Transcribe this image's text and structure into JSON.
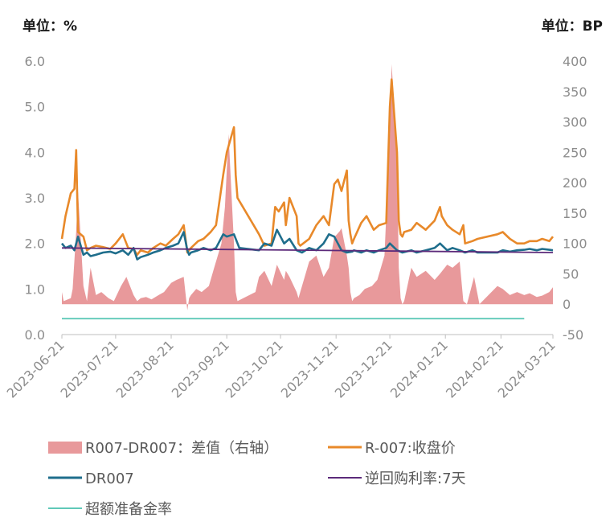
{
  "chart_data": {
    "type": "line",
    "left_axis_unit": "单位：%",
    "right_axis_unit": "单位：BP",
    "y_left": {
      "min": 0,
      "max": 6,
      "ticks": [
        0,
        1,
        2,
        3,
        4,
        5,
        6
      ],
      "tick_labels": [
        "0.0",
        "1.0",
        "2.0",
        "3.0",
        "4.0",
        "5.0",
        "6.0"
      ]
    },
    "y_right": {
      "min": -50,
      "max": 400,
      "ticks": [
        -50,
        0,
        50,
        100,
        150,
        200,
        250,
        300,
        350,
        400
      ],
      "tick_labels": [
        "-50",
        "0",
        "50",
        "100",
        "150",
        "200",
        "250",
        "300",
        "350",
        "400"
      ]
    },
    "x_range": [
      "2023-06-21",
      "2024-03-21"
    ],
    "x_ticks": [
      "2023-06-21",
      "2023-07-21",
      "2023-08-21",
      "2023-09-21",
      "2023-10-21",
      "2023-11-21",
      "2023-12-21",
      "2024-01-21",
      "2024-02-21",
      "2024-03-21"
    ],
    "grid": false,
    "legend_position": "bottom",
    "series": [
      {
        "name": "R007-DR007：差值（右轴）",
        "kind": "area",
        "axis": "right",
        "color": "#e8999b",
        "x": [
          "2023-06-21",
          "2023-06-22",
          "2023-06-26",
          "2023-06-27",
          "2023-06-29",
          "2023-06-30",
          "2023-07-03",
          "2023-07-05",
          "2023-07-07",
          "2023-07-10",
          "2023-07-13",
          "2023-07-17",
          "2023-07-20",
          "2023-07-24",
          "2023-07-27",
          "2023-07-31",
          "2023-08-02",
          "2023-08-04",
          "2023-08-07",
          "2023-08-10",
          "2023-08-14",
          "2023-08-17",
          "2023-08-21",
          "2023-08-24",
          "2023-08-28",
          "2023-08-30",
          "2023-08-31",
          "2023-09-01",
          "2023-09-04",
          "2023-09-07",
          "2023-09-11",
          "2023-09-14",
          "2023-09-18",
          "2023-09-20",
          "2023-09-22",
          "2023-09-25",
          "2023-09-26",
          "2023-09-27",
          "2023-10-07",
          "2023-10-09",
          "2023-10-12",
          "2023-10-16",
          "2023-10-19",
          "2023-10-23",
          "2023-10-24",
          "2023-10-26",
          "2023-10-30",
          "2023-10-31",
          "2023-11-01",
          "2023-11-06",
          "2023-11-10",
          "2023-11-14",
          "2023-11-17",
          "2023-11-20",
          "2023-11-23",
          "2023-11-24",
          "2023-11-27",
          "2023-11-28",
          "2023-11-29",
          "2023-11-30",
          "2023-12-01",
          "2023-12-04",
          "2023-12-07",
          "2023-12-11",
          "2023-12-14",
          "2023-12-18",
          "2023-12-21",
          "2023-12-22",
          "2023-12-25",
          "2023-12-26",
          "2023-12-27",
          "2023-12-28",
          "2023-12-29",
          "2024-01-02",
          "2024-01-05",
          "2024-01-10",
          "2024-01-15",
          "2024-01-18",
          "2024-01-22",
          "2024-01-25",
          "2024-01-29",
          "2024-01-31",
          "2024-02-02",
          "2024-02-06",
          "2024-02-09",
          "2024-02-19",
          "2024-02-22",
          "2024-02-26",
          "2024-03-01",
          "2024-03-05",
          "2024-03-08",
          "2024-03-12",
          "2024-03-15",
          "2024-03-19",
          "2024-03-21"
        ],
        "values": [
          20,
          5,
          10,
          25,
          120,
          185,
          30,
          5,
          60,
          15,
          20,
          10,
          5,
          30,
          45,
          15,
          5,
          10,
          12,
          8,
          15,
          20,
          35,
          40,
          45,
          -10,
          10,
          15,
          25,
          20,
          30,
          60,
          100,
          160,
          280,
          100,
          20,
          5,
          20,
          45,
          55,
          30,
          65,
          40,
          55,
          45,
          20,
          10,
          20,
          70,
          80,
          45,
          60,
          110,
          120,
          125,
          80,
          60,
          20,
          5,
          10,
          15,
          25,
          30,
          40,
          80,
          280,
          395,
          250,
          60,
          10,
          0,
          5,
          60,
          45,
          55,
          40,
          50,
          65,
          60,
          70,
          5,
          0,
          45,
          0,
          30,
          25,
          15,
          20,
          15,
          18,
          12,
          14,
          20,
          28
        ]
      },
      {
        "name": "R-007:收盘价",
        "kind": "line",
        "axis": "left",
        "color": "#e8892a",
        "x": [
          "2023-06-21",
          "2023-06-23",
          "2023-06-26",
          "2023-06-28",
          "2023-06-29",
          "2023-06-30",
          "2023-07-03",
          "2023-07-05",
          "2023-07-07",
          "2023-07-10",
          "2023-07-14",
          "2023-07-18",
          "2023-07-21",
          "2023-07-25",
          "2023-07-28",
          "2023-07-31",
          "2023-08-02",
          "2023-08-04",
          "2023-08-08",
          "2023-08-11",
          "2023-08-15",
          "2023-08-18",
          "2023-08-22",
          "2023-08-25",
          "2023-08-28",
          "2023-08-30",
          "2023-08-31",
          "2023-09-01",
          "2023-09-05",
          "2023-09-08",
          "2023-09-12",
          "2023-09-15",
          "2023-09-19",
          "2023-09-21",
          "2023-09-25",
          "2023-09-26",
          "2023-09-27",
          "2023-10-09",
          "2023-10-12",
          "2023-10-16",
          "2023-10-18",
          "2023-10-20",
          "2023-10-23",
          "2023-10-24",
          "2023-10-26",
          "2023-10-30",
          "2023-10-31",
          "2023-11-01",
          "2023-11-06",
          "2023-11-10",
          "2023-11-14",
          "2023-11-17",
          "2023-11-20",
          "2023-11-22",
          "2023-11-24",
          "2023-11-27",
          "2023-11-28",
          "2023-11-29",
          "2023-11-30",
          "2023-12-01",
          "2023-12-05",
          "2023-12-08",
          "2023-12-12",
          "2023-12-15",
          "2023-12-19",
          "2023-12-21",
          "2023-12-22",
          "2023-12-25",
          "2023-12-26",
          "2023-12-27",
          "2023-12-28",
          "2023-12-29",
          "2024-01-02",
          "2024-01-05",
          "2024-01-10",
          "2024-01-15",
          "2024-01-18",
          "2024-01-19",
          "2024-01-22",
          "2024-01-25",
          "2024-01-29",
          "2024-01-31",
          "2024-02-01",
          "2024-02-05",
          "2024-02-08",
          "2024-02-19",
          "2024-02-22",
          "2024-02-26",
          "2024-03-01",
          "2024-03-05",
          "2024-03-08",
          "2024-03-12",
          "2024-03-15",
          "2024-03-19",
          "2024-03-21"
        ],
        "values": [
          2.1,
          2.6,
          3.1,
          3.2,
          4.05,
          2.25,
          2.15,
          1.85,
          1.9,
          1.95,
          1.92,
          1.88,
          2.0,
          2.2,
          1.9,
          1.88,
          1.75,
          1.85,
          1.8,
          1.9,
          2.0,
          1.95,
          2.1,
          2.2,
          2.4,
          1.8,
          1.85,
          1.9,
          2.05,
          2.1,
          2.25,
          2.4,
          3.5,
          4.0,
          4.55,
          3.5,
          3.0,
          2.2,
          1.95,
          2.0,
          2.8,
          2.7,
          2.9,
          2.4,
          3.0,
          2.6,
          2.0,
          1.95,
          2.1,
          2.4,
          2.6,
          2.4,
          3.3,
          3.4,
          3.15,
          3.6,
          2.5,
          2.2,
          2.0,
          2.1,
          2.45,
          2.6,
          2.3,
          2.4,
          2.45,
          5.0,
          5.6,
          4.0,
          2.5,
          2.2,
          2.15,
          2.25,
          2.3,
          2.45,
          2.3,
          2.5,
          2.8,
          2.6,
          2.4,
          2.3,
          2.2,
          2.4,
          2.0,
          2.05,
          2.1,
          2.2,
          2.25,
          2.1,
          2.0,
          2.0,
          2.05,
          2.05,
          2.1,
          2.05,
          2.15
        ]
      },
      {
        "name": "DR007",
        "kind": "line",
        "axis": "left",
        "color": "#1f6e8c",
        "x": [
          "2023-06-21",
          "2023-06-23",
          "2023-06-26",
          "2023-06-28",
          "2023-06-30",
          "2023-07-03",
          "2023-07-05",
          "2023-07-07",
          "2023-07-10",
          "2023-07-14",
          "2023-07-18",
          "2023-07-21",
          "2023-07-25",
          "2023-07-28",
          "2023-07-31",
          "2023-08-02",
          "2023-08-04",
          "2023-08-08",
          "2023-08-11",
          "2023-08-15",
          "2023-08-18",
          "2023-08-22",
          "2023-08-25",
          "2023-08-28",
          "2023-08-30",
          "2023-08-31",
          "2023-09-01",
          "2023-09-05",
          "2023-09-08",
          "2023-09-12",
          "2023-09-15",
          "2023-09-19",
          "2023-09-21",
          "2023-09-25",
          "2023-09-28",
          "2023-10-09",
          "2023-10-12",
          "2023-10-16",
          "2023-10-19",
          "2023-10-23",
          "2023-10-26",
          "2023-10-30",
          "2023-11-02",
          "2023-11-06",
          "2023-11-10",
          "2023-11-14",
          "2023-11-17",
          "2023-11-20",
          "2023-11-24",
          "2023-11-27",
          "2023-11-30",
          "2023-12-01",
          "2023-12-05",
          "2023-12-08",
          "2023-12-12",
          "2023-12-15",
          "2023-12-19",
          "2023-12-21",
          "2023-12-25",
          "2023-12-28",
          "2024-01-02",
          "2024-01-05",
          "2024-01-10",
          "2024-01-15",
          "2024-01-18",
          "2024-01-22",
          "2024-01-25",
          "2024-01-29",
          "2024-02-01",
          "2024-02-05",
          "2024-02-08",
          "2024-02-19",
          "2024-02-22",
          "2024-02-26",
          "2024-03-01",
          "2024-03-05",
          "2024-03-08",
          "2024-03-12",
          "2024-03-15",
          "2024-03-19",
          "2024-03-21"
        ],
        "values": [
          2.0,
          1.9,
          1.95,
          1.85,
          2.15,
          1.75,
          1.8,
          1.72,
          1.75,
          1.8,
          1.82,
          1.78,
          1.85,
          1.75,
          1.9,
          1.65,
          1.7,
          1.75,
          1.8,
          1.85,
          1.9,
          1.95,
          2.0,
          2.25,
          1.85,
          1.75,
          1.8,
          1.85,
          1.9,
          1.85,
          1.9,
          2.2,
          2.15,
          2.2,
          1.9,
          1.85,
          2.0,
          1.95,
          2.3,
          2.0,
          2.1,
          1.85,
          1.8,
          1.9,
          1.85,
          2.0,
          2.2,
          2.15,
          1.85,
          1.8,
          1.82,
          1.85,
          1.8,
          1.85,
          1.8,
          1.85,
          1.9,
          2.0,
          1.85,
          1.8,
          1.85,
          1.8,
          1.85,
          1.9,
          2.0,
          1.85,
          1.9,
          1.85,
          1.8,
          1.85,
          1.8,
          1.8,
          1.85,
          1.82,
          1.85,
          1.86,
          1.88,
          1.85,
          1.88,
          1.86,
          1.85
        ]
      },
      {
        "name": "逆回购利率:7天",
        "kind": "line",
        "axis": "left",
        "color": "#5c2a7a",
        "x": [
          "2023-06-21",
          "2024-03-21"
        ],
        "values": [
          1.9,
          1.8
        ]
      },
      {
        "name": "超额准备金率",
        "kind": "line",
        "axis": "left",
        "color": "#5fc9b8",
        "x": [
          "2023-06-21",
          "2024-03-05"
        ],
        "values": [
          0.35,
          0.35
        ]
      }
    ]
  }
}
